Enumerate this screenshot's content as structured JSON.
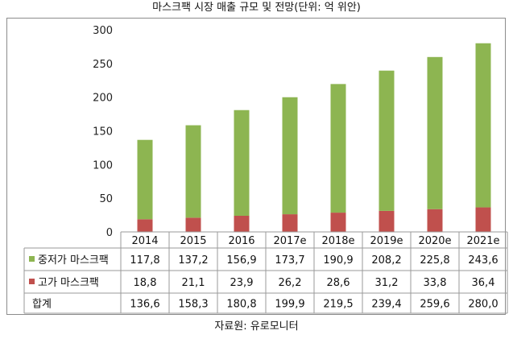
{
  "title": "마스크팩 시장 매출 규모 및 전망(단위: 억 위안)",
  "source": "자료원: 유로모니터",
  "chart_data": {
    "type": "bar",
    "stacked": true,
    "categories": [
      "2014",
      "2015",
      "2016",
      "2017e",
      "2018e",
      "2019e",
      "2020e",
      "2021e"
    ],
    "series": [
      {
        "name": "중저가 마스크팩",
        "color": "#8db551",
        "values": [
          117.8,
          137.2,
          156.9,
          173.7,
          190.9,
          208.2,
          225.8,
          243.6
        ],
        "labels": [
          "117,8",
          "137,2",
          "156,9",
          "173,7",
          "190,9",
          "208,2",
          "225,8",
          "243,6"
        ]
      },
      {
        "name": "고가 마스크팩",
        "color": "#c0504d",
        "values": [
          18.8,
          21.1,
          23.9,
          26.2,
          28.6,
          31.2,
          33.8,
          36.4
        ],
        "labels": [
          "18,8",
          "21,1",
          "23,9",
          "26,2",
          "28,6",
          "31,2",
          "33,8",
          "36,4"
        ]
      }
    ],
    "total": {
      "name": "합계",
      "values": [
        136.6,
        158.3,
        180.8,
        199.9,
        219.5,
        239.4,
        259.6,
        280.0
      ],
      "labels": [
        "136,6",
        "158,3",
        "180,8",
        "199,9",
        "219,5",
        "239,4",
        "259,6",
        "280,0"
      ]
    },
    "ylim": [
      0,
      300
    ],
    "yticks": [
      "0",
      "50",
      "100",
      "150",
      "200",
      "250",
      "300"
    ],
    "grid": false,
    "legend": "data-table"
  }
}
